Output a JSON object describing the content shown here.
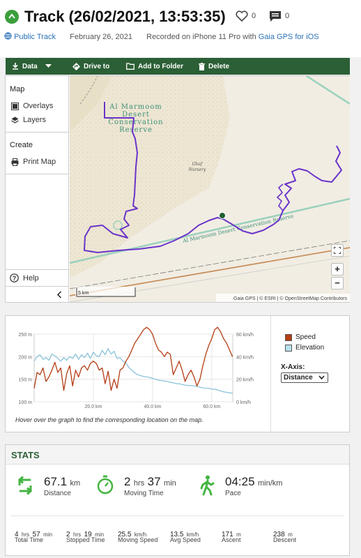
{
  "header": {
    "title": "Track (26/02/2021, 13:53:35)",
    "likes": "0",
    "comments": "0",
    "visibility": "Public Track",
    "date": "February 26, 2021",
    "recorded_on_prefix": "Recorded on iPhone 11 Pro with",
    "recorded_app": "Gaia GPS for iOS"
  },
  "toolbar": {
    "data_label": "Data",
    "drive_label": "Drive to",
    "folder_label": "Add to Folder",
    "delete_label": "Delete"
  },
  "sidebar": {
    "map_heading": "Map",
    "overlays": "Overlays",
    "layers": "Layers",
    "create_heading": "Create",
    "print_map": "Print Map",
    "help": "Help"
  },
  "map": {
    "reserve_label_1": "Al Marmoom",
    "reserve_label_2": "Desert",
    "reserve_label_3": "Conservation",
    "reserve_label_4": "Reserve",
    "nursery_label_1": "Ghaf",
    "nursery_label_2": "Nursery",
    "road_label": "Al Marmoom Desert Conservation Reserve",
    "scale": "5 km",
    "attribution": "Gaia GPS | © ESRI | © OpenStreetMap Contributors",
    "zoom_in": "+",
    "zoom_out": "−"
  },
  "chart_data": {
    "type": "line",
    "x_label_ticks": [
      "20.0 km",
      "40.0 km",
      "60.0 km"
    ],
    "x_ticks": [
      20,
      40,
      60
    ],
    "xlim": [
      0,
      67.1
    ],
    "left_axis_ticks": [
      "250 m",
      "200 m",
      "150 m",
      "100 m"
    ],
    "left_ylim": [
      100,
      250
    ],
    "right_axis_ticks": [
      "60 km/h",
      "40 km/h",
      "20 km/h",
      "0 km/h"
    ],
    "right_ylim": [
      0,
      60
    ],
    "series": [
      {
        "name": "Speed",
        "axis": "right",
        "color": "#b53d14",
        "x": [
          0,
          1,
          2,
          3,
          4,
          5,
          6,
          7,
          8,
          9,
          10,
          11,
          12,
          13,
          14,
          15,
          16,
          17,
          18,
          19,
          20,
          21,
          22,
          23,
          24,
          25,
          26,
          27,
          28,
          29,
          30,
          31,
          32,
          33,
          34,
          35,
          36,
          37,
          38,
          39,
          40,
          41,
          42,
          43,
          44,
          45,
          46,
          47,
          48,
          49,
          50,
          51,
          52,
          53,
          54,
          55,
          56,
          57,
          58,
          59,
          60,
          61,
          62,
          63,
          64,
          65,
          66,
          67
        ],
        "values": [
          12,
          26,
          24,
          30,
          18,
          22,
          28,
          35,
          26,
          30,
          10,
          25,
          32,
          14,
          28,
          22,
          30,
          32,
          28,
          34,
          36,
          34,
          28,
          30,
          16,
          27,
          10,
          20,
          12,
          28,
          30,
          36,
          40,
          46,
          52,
          56,
          60,
          64,
          66,
          64,
          60,
          52,
          46,
          44,
          40,
          44,
          42,
          24,
          30,
          36,
          28,
          18,
          24,
          28,
          22,
          14,
          20,
          32,
          42,
          50,
          56,
          64,
          66,
          62,
          56,
          52,
          46,
          40
        ]
      },
      {
        "name": "Elevation",
        "axis": "left",
        "color": "#8ac4dc",
        "x": [
          0,
          1,
          2,
          3,
          4,
          5,
          6,
          7,
          8,
          9,
          10,
          11,
          12,
          13,
          14,
          15,
          16,
          17,
          18,
          19,
          20,
          21,
          22,
          23,
          24,
          25,
          26,
          27,
          28,
          29,
          30,
          31,
          32,
          33,
          34,
          35,
          36,
          37,
          38,
          39,
          40,
          41,
          42,
          43,
          44,
          45,
          46,
          47,
          48,
          49,
          50,
          51,
          52,
          53,
          54,
          55,
          56,
          57,
          58,
          59,
          60,
          61,
          62,
          63,
          64,
          65,
          66,
          67
        ],
        "values": [
          190,
          200,
          204,
          194,
          198,
          192,
          206,
          202,
          196,
          190,
          198,
          192,
          200,
          196,
          206,
          194,
          204,
          198,
          208,
          196,
          210,
          202,
          200,
          214,
          204,
          218,
          206,
          212,
          196,
          198,
          190,
          186,
          176,
          170,
          164,
          160,
          158,
          156,
          155,
          154,
          152,
          150,
          148,
          147,
          146,
          145,
          143,
          142,
          140,
          140,
          138,
          137,
          136,
          136,
          135,
          134,
          132,
          131,
          130,
          130,
          128,
          128,
          126,
          124,
          122,
          121,
          120,
          119
        ]
      }
    ],
    "legend": [
      "Speed",
      "Elevation"
    ],
    "xaxis_label": "X-Axis:",
    "xaxis_value": "Distance",
    "hint": "Hover over the graph to find the corresponding location on the map."
  },
  "stats": {
    "title": "STATS",
    "distance": {
      "value": "67.1",
      "unit": "km",
      "label": "Distance"
    },
    "moving_time": {
      "hrs": "2",
      "hrs_unit": "hrs",
      "min": "37",
      "min_unit": "min",
      "label": "Moving Time"
    },
    "pace": {
      "value": "04:25",
      "unit": "min/km",
      "label": "Pace"
    },
    "total_time": {
      "hrs": "4",
      "hrs_unit": "hrs",
      "min": "57",
      "min_unit": "min",
      "label": "Total Time"
    },
    "stopped_time": {
      "hrs": "2",
      "hrs_unit": "hrs",
      "min": "19",
      "min_unit": "min",
      "label": "Stopped Time"
    },
    "moving_speed": {
      "value": "25.5",
      "unit": "km/h",
      "label": "Moving Speed"
    },
    "avg_speed": {
      "value": "13.5",
      "unit": "km/h",
      "label": "Avg Speed"
    },
    "ascent": {
      "value": "171",
      "unit": "m",
      "label": "Ascent"
    },
    "descent": {
      "value": "238",
      "unit": "m",
      "label": "Descent"
    }
  },
  "colors": {
    "brand_green": "#2b5f35",
    "track_purple": "#6a33c9",
    "icon_green": "#3c9f3c"
  }
}
